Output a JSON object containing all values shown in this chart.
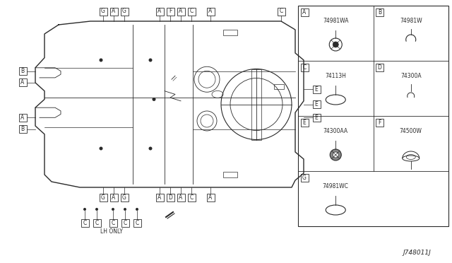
{
  "bg_color": "#ffffff",
  "line_color": "#2a2a2a",
  "title_code": "J748011J",
  "part_cells": [
    {
      "label": "A",
      "part_num": "74981WA",
      "col": 0,
      "row": 0,
      "shape": "grommet_small"
    },
    {
      "label": "B",
      "part_num": "74981W",
      "col": 1,
      "row": 0,
      "shape": "clip"
    },
    {
      "label": "C",
      "part_num": "74113H",
      "col": 0,
      "row": 1,
      "shape": "oval_large"
    },
    {
      "label": "D",
      "part_num": "74300A",
      "col": 1,
      "row": 1,
      "shape": "clip_small"
    },
    {
      "label": "E",
      "part_num": "74300AA",
      "col": 0,
      "row": 2,
      "shape": "grommet_dark"
    },
    {
      "label": "F",
      "part_num": "74500W",
      "col": 1,
      "row": 2,
      "shape": "grommet_round"
    },
    {
      "label": "G",
      "part_num": "74981WC",
      "col": 0,
      "row": 3,
      "shape": "oval_large"
    }
  ]
}
